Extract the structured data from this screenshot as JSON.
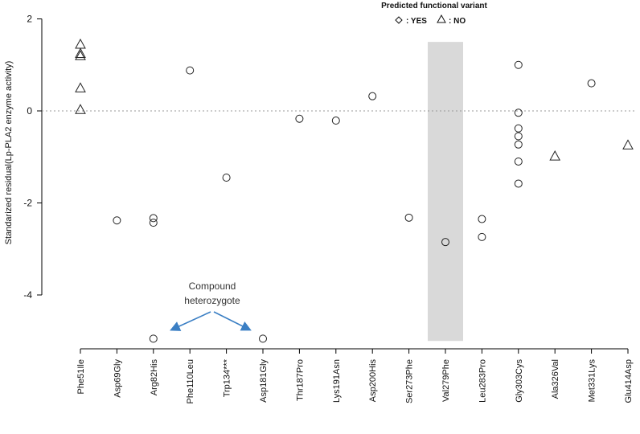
{
  "chart_data": {
    "type": "scatter",
    "title": "",
    "xlabel": "",
    "ylabel": "Standarized residual(Lp-PLA2 enzyme activity)",
    "ylim": [
      -5.2,
      2.2
    ],
    "yticks": [
      2,
      0,
      -2,
      -4
    ],
    "ytick_labels": [
      "2",
      "0",
      "-2",
      "-4"
    ],
    "reference_line_y": 0,
    "categories": [
      "Phe51Ile",
      "Asp69Gly",
      "Arg82His",
      "Phe110Leu",
      "Trp134***",
      "Asp181Gly",
      "Thr187Pro",
      "Lys191Asn",
      "Asp200His",
      "Ser273Phe",
      "Val279Phe",
      "Leu283Pro",
      "Gly303Cys",
      "Ala326Val",
      "Met331Lys",
      "Glu414Asp"
    ],
    "legend": {
      "title": "Predicted functional variant",
      "yes_label": ": YES",
      "no_label": ": NO",
      "position": "top-center"
    },
    "series": [
      {
        "name": "YES",
        "marker": "circle",
        "points": [
          {
            "category": "Asp69Gly",
            "y": -2.38
          },
          {
            "category": "Arg82His",
            "y": -2.33
          },
          {
            "category": "Arg82His",
            "y": -2.43
          },
          {
            "category": "Arg82His",
            "y": -4.95
          },
          {
            "category": "Phe110Leu",
            "y": 0.88
          },
          {
            "category": "Trp134***",
            "y": -1.45
          },
          {
            "category": "Asp181Gly",
            "y": -4.95
          },
          {
            "category": "Thr187Pro",
            "y": -0.17
          },
          {
            "category": "Lys191Asn",
            "y": -0.21
          },
          {
            "category": "Asp200His",
            "y": 0.32
          },
          {
            "category": "Ser273Phe",
            "y": -2.32
          },
          {
            "category": "Val279Phe",
            "y": -2.85
          },
          {
            "category": "Leu283Pro",
            "y": -2.35
          },
          {
            "category": "Leu283Pro",
            "y": -2.74
          },
          {
            "category": "Gly303Cys",
            "y": 1.0
          },
          {
            "category": "Gly303Cys",
            "y": -0.04
          },
          {
            "category": "Gly303Cys",
            "y": -0.38
          },
          {
            "category": "Gly303Cys",
            "y": -0.55
          },
          {
            "category": "Gly303Cys",
            "y": -0.73
          },
          {
            "category": "Gly303Cys",
            "y": -1.1
          },
          {
            "category": "Gly303Cys",
            "y": -1.58
          },
          {
            "category": "Met331Lys",
            "y": 0.6
          }
        ]
      },
      {
        "name": "NO",
        "marker": "triangle",
        "points": [
          {
            "category": "Phe51Ile",
            "y": 1.45
          },
          {
            "category": "Phe51Ile",
            "y": 1.25
          },
          {
            "category": "Phe51Ile",
            "y": 1.2
          },
          {
            "category": "Phe51Ile",
            "y": 0.5
          },
          {
            "category": "Phe51Ile",
            "y": 0.03
          },
          {
            "category": "Ala326Val",
            "y": -0.98
          },
          {
            "category": "Glu414Asp",
            "y": -0.74
          }
        ]
      }
    ],
    "shaded_region": {
      "category": "Val279Phe",
      "y_from": -5.0,
      "y_to": 1.5,
      "color": "#d9d9d9"
    },
    "annotation": {
      "line1": "Compound",
      "line2": "heterozygote",
      "targets": [
        "Arg82His",
        "Asp181Gly"
      ],
      "arrow_color": "#3b7fc4"
    }
  }
}
